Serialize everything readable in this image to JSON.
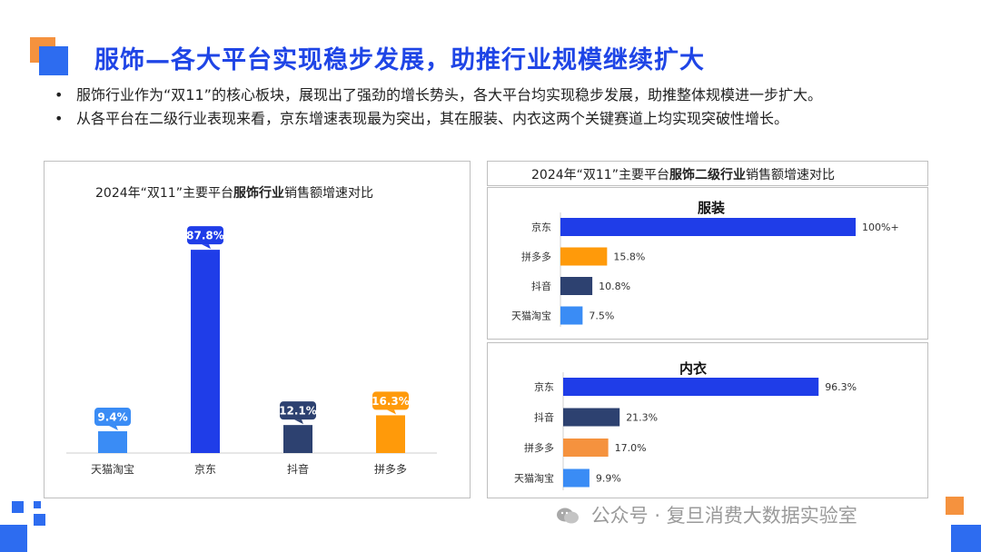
{
  "header": {
    "title": "服饰—各大平台实现稳步发展，助推行业规模继续扩大",
    "bullets": [
      "服饰行业作为“双11”的核心板块，展现出了强劲的增长势头，各大平台均实现稳步发展，助推整体规模进一步扩大。",
      "从各平台在二级行业表现来看，京东增速表现最为突出，其在服装、内衣这两个关键赛道上均实现突破性增长。"
    ]
  },
  "right_header": {
    "title_prefix": "2024年“双11”主要平台",
    "title_bold": "服饰二级行业",
    "title_suffix": "销售额增速对比"
  },
  "watermark": {
    "text": "公众号 · 复旦消费大数据实验室"
  },
  "colors": {
    "jd": "#1f3de8",
    "pdd": "#ff9a0a",
    "douyin": "#2d4170",
    "tmall": "#3a8cf5",
    "pdd_neiyi": "#f5923e",
    "accent": "#1f45e6"
  },
  "chart_data": [
    {
      "type": "bar",
      "title_prefix": "2024年“双11”主要平台",
      "title_bold": "服饰行业",
      "title_suffix": "销售额增速对比",
      "categories": [
        "天猫淘宝",
        "京东",
        "抖音",
        "拼多多"
      ],
      "values": [
        9.4,
        87.8,
        12.1,
        16.3
      ],
      "labels": [
        "9.4%",
        "87.8%",
        "12.1%",
        "16.3%"
      ],
      "colors": [
        "#3a8cf5",
        "#1f3de8",
        "#2d4170",
        "#ff9a0a"
      ],
      "ylim": [
        0,
        100
      ]
    },
    {
      "type": "bar",
      "orientation": "horizontal",
      "title": "服装",
      "categories": [
        "京东",
        "拼多多",
        "抖音",
        "天猫淘宝"
      ],
      "values": [
        100,
        15.8,
        10.8,
        7.5
      ],
      "labels": [
        "100%+",
        "15.8%",
        "10.8%",
        "7.5%"
      ],
      "colors": [
        "#1f3de8",
        "#ff9a0a",
        "#2d4170",
        "#3a8cf5"
      ],
      "xlim": [
        0,
        100
      ]
    },
    {
      "type": "bar",
      "orientation": "horizontal",
      "title": "内衣",
      "categories": [
        "京东",
        "抖音",
        "拼多多",
        "天猫淘宝"
      ],
      "values": [
        96.3,
        21.3,
        17.0,
        9.9
      ],
      "labels": [
        "96.3%",
        "21.3%",
        "17.0%",
        "9.9%"
      ],
      "colors": [
        "#1f3de8",
        "#2d4170",
        "#f5923e",
        "#3a8cf5"
      ],
      "xlim": [
        0,
        100
      ]
    }
  ]
}
